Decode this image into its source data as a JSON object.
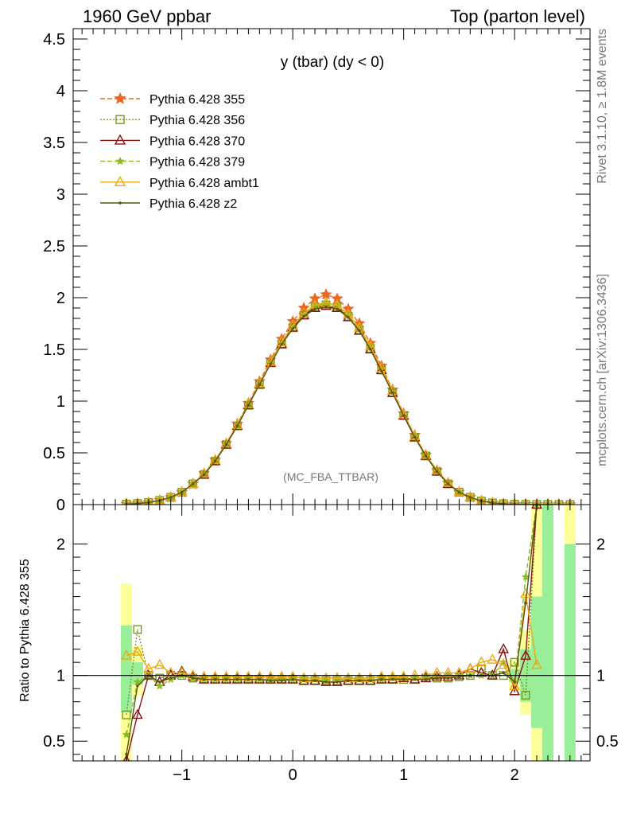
{
  "header": {
    "left": "1960 GeV ppbar",
    "right": "Top (parton level)"
  },
  "side_labels": {
    "rivet": "Rivet 3.1.10, ≥ 1.8M events",
    "mcplots": "mcplots.cern.ch [arXiv:1306.3436]"
  },
  "colors": {
    "p355": "#ee6622",
    "p356": "#779922",
    "p370": "#881111",
    "p379": "#88bb22",
    "ambt1": "#eeaa11",
    "z2": "#555511",
    "band_inner": "#99ee99",
    "band_outer": "#ffff99"
  },
  "chart_data": [
    {
      "type": "line",
      "title": "y (tbar) (dy < 0)",
      "watermark": "(MC_FBA_TTBAR)",
      "xlim": [
        -1.98,
        2.68
      ],
      "ylim": [
        0,
        4.6
      ],
      "yticks": [
        "0",
        "0.5",
        "1",
        "1.5",
        "2",
        "2.5",
        "3",
        "3.5",
        "4",
        "4.5"
      ],
      "x": [
        -1.5,
        -1.4,
        -1.3,
        -1.2,
        -1.1,
        -1.0,
        -0.9,
        -0.8,
        -0.7,
        -0.6,
        -0.5,
        -0.4,
        -0.3,
        -0.2,
        -0.1,
        0.0,
        0.1,
        0.2,
        0.3,
        0.4,
        0.5,
        0.6,
        0.7,
        0.8,
        0.9,
        1.0,
        1.1,
        1.2,
        1.3,
        1.4,
        1.5,
        1.6,
        1.7,
        1.8,
        1.9,
        2.0,
        2.1,
        2.2,
        2.3,
        2.4,
        2.5
      ],
      "series": [
        {
          "name": "Pythia 6.428 355",
          "key": "p355",
          "marker": "star",
          "dash": "dashed",
          "values": [
            0.005,
            0.01,
            0.02,
            0.04,
            0.07,
            0.12,
            0.2,
            0.3,
            0.43,
            0.59,
            0.78,
            0.98,
            1.19,
            1.4,
            1.6,
            1.77,
            1.9,
            1.99,
            2.03,
            1.99,
            1.89,
            1.75,
            1.56,
            1.34,
            1.11,
            0.88,
            0.67,
            0.48,
            0.33,
            0.21,
            0.12,
            0.07,
            0.035,
            0.017,
            0.008,
            0.004,
            0.002,
            0.001,
            0.0005,
            0.0003,
            0.0002
          ]
        },
        {
          "name": "Pythia 6.428 356",
          "key": "p356",
          "marker": "square",
          "dash": "dotted",
          "values": [
            0.005,
            0.01,
            0.02,
            0.04,
            0.07,
            0.12,
            0.2,
            0.29,
            0.42,
            0.58,
            0.76,
            0.96,
            1.16,
            1.37,
            1.55,
            1.71,
            1.83,
            1.91,
            1.93,
            1.91,
            1.82,
            1.69,
            1.51,
            1.3,
            1.08,
            0.86,
            0.65,
            0.47,
            0.32,
            0.2,
            0.12,
            0.07,
            0.035,
            0.017,
            0.008,
            0.004,
            0.002,
            0.001,
            0.0005,
            0.0003,
            0.0002
          ]
        },
        {
          "name": "Pythia 6.428 370",
          "key": "p370",
          "marker": "triangle",
          "dash": "solid",
          "values": [
            0.005,
            0.01,
            0.02,
            0.04,
            0.07,
            0.12,
            0.2,
            0.29,
            0.42,
            0.58,
            0.76,
            0.96,
            1.16,
            1.37,
            1.55,
            1.71,
            1.83,
            1.9,
            1.92,
            1.9,
            1.81,
            1.68,
            1.5,
            1.3,
            1.08,
            0.86,
            0.65,
            0.47,
            0.32,
            0.2,
            0.12,
            0.07,
            0.035,
            0.017,
            0.008,
            0.004,
            0.002,
            0.001,
            0.0005,
            0.0003,
            0.0002
          ]
        },
        {
          "name": "Pythia 6.428 379",
          "key": "p379",
          "marker": "smallstar",
          "dash": "dashed",
          "values": [
            0.005,
            0.01,
            0.02,
            0.04,
            0.07,
            0.12,
            0.2,
            0.29,
            0.42,
            0.58,
            0.76,
            0.96,
            1.16,
            1.37,
            1.56,
            1.72,
            1.84,
            1.92,
            1.94,
            1.92,
            1.83,
            1.7,
            1.52,
            1.31,
            1.09,
            0.87,
            0.66,
            0.47,
            0.32,
            0.2,
            0.12,
            0.07,
            0.035,
            0.017,
            0.008,
            0.004,
            0.002,
            0.001,
            0.0005,
            0.0003,
            0.0002
          ]
        },
        {
          "name": "Pythia 6.428 ambt1",
          "key": "ambt1",
          "marker": "triangle",
          "dash": "solid",
          "values": [
            0.005,
            0.01,
            0.02,
            0.04,
            0.07,
            0.12,
            0.2,
            0.3,
            0.43,
            0.59,
            0.77,
            0.97,
            1.17,
            1.38,
            1.57,
            1.73,
            1.85,
            1.93,
            1.95,
            1.93,
            1.84,
            1.71,
            1.53,
            1.32,
            1.1,
            0.87,
            0.66,
            0.48,
            0.33,
            0.21,
            0.12,
            0.07,
            0.036,
            0.018,
            0.009,
            0.004,
            0.002,
            0.001,
            0.0005,
            0.0003,
            0.0002
          ]
        },
        {
          "name": "Pythia 6.428 z2",
          "key": "z2",
          "marker": "dot",
          "dash": "solid",
          "values": [
            0.005,
            0.01,
            0.02,
            0.04,
            0.07,
            0.12,
            0.2,
            0.29,
            0.42,
            0.58,
            0.76,
            0.96,
            1.16,
            1.36,
            1.55,
            1.7,
            1.82,
            1.89,
            1.91,
            1.89,
            1.81,
            1.68,
            1.5,
            1.29,
            1.08,
            0.86,
            0.65,
            0.47,
            0.32,
            0.2,
            0.12,
            0.07,
            0.035,
            0.017,
            0.008,
            0.004,
            0.002,
            0.001,
            0.0005,
            0.0003,
            0.0002
          ]
        }
      ]
    },
    {
      "type": "line",
      "ylabel": "Ratio to Pythia 6.428 355",
      "xlim": [
        -1.98,
        2.68
      ],
      "ylim": [
        0.35,
        2.3
      ],
      "xticks": [
        "−1",
        "0",
        "1",
        "2"
      ],
      "yticks": [
        "0.5",
        "1",
        "2"
      ],
      "reference": 1,
      "bands": [
        {
          "x0": -1.55,
          "x1": -1.45,
          "outer": [
            0.35,
            1.7
          ],
          "inner": [
            0.72,
            1.38
          ]
        },
        {
          "x0": -1.45,
          "x1": -1.35,
          "outer": [
            0.85,
            1.22
          ],
          "inner": [
            0.93,
            1.1
          ]
        },
        {
          "x0": 1.95,
          "x1": 2.05,
          "outer": [
            0.9,
            1.12
          ],
          "inner": [
            0.95,
            1.05
          ]
        },
        {
          "x0": 2.05,
          "x1": 2.15,
          "outer": [
            0.7,
            1.35
          ],
          "inner": [
            0.8,
            1.2
          ]
        },
        {
          "x0": 2.15,
          "x1": 2.25,
          "outer": [
            0.35,
            2.3
          ],
          "inner": [
            0.6,
            1.6
          ]
        },
        {
          "x0": 2.25,
          "x1": 2.35,
          "outer": [
            0.35,
            2.3
          ],
          "inner": [
            0.35,
            2.3
          ]
        },
        {
          "x0": 2.45,
          "x1": 2.55,
          "outer": [
            0.35,
            2.3
          ],
          "inner": [
            0.35,
            2.0
          ]
        }
      ],
      "x": [
        -1.5,
        -1.4,
        -1.3,
        -1.2,
        -1.1,
        -1.0,
        -0.9,
        -0.8,
        -0.7,
        -0.6,
        -0.5,
        -0.4,
        -0.3,
        -0.2,
        -0.1,
        0.0,
        0.1,
        0.2,
        0.3,
        0.4,
        0.5,
        0.6,
        0.7,
        0.8,
        0.9,
        1.0,
        1.1,
        1.2,
        1.3,
        1.4,
        1.5,
        1.6,
        1.7,
        1.8,
        1.9,
        2.0,
        2.1,
        2.2
      ],
      "series": [
        {
          "name": "Pythia 6.428 356",
          "key": "p356",
          "marker": "square",
          "dash": "dotted",
          "values": [
            0.7,
            1.35,
            1.0,
            0.98,
            1.0,
            1.0,
            0.98,
            0.97,
            0.97,
            0.97,
            0.97,
            0.97,
            0.97,
            0.97,
            0.97,
            0.97,
            0.96,
            0.96,
            0.96,
            0.96,
            0.96,
            0.96,
            0.96,
            0.97,
            0.97,
            0.97,
            0.97,
            0.98,
            0.98,
            0.98,
            0.99,
            1.0,
            1.05,
            1.0,
            1.0,
            1.1,
            0.85,
            2.3
          ]
        },
        {
          "name": "Pythia 6.428 370",
          "key": "p370",
          "marker": "triangle",
          "dash": "solid",
          "values": [
            0.35,
            0.7,
            1.0,
            0.95,
            1.0,
            1.03,
            0.99,
            0.97,
            0.97,
            0.97,
            0.97,
            0.97,
            0.97,
            0.97,
            0.97,
            0.97,
            0.96,
            0.96,
            0.95,
            0.95,
            0.96,
            0.96,
            0.96,
            0.97,
            0.97,
            0.98,
            0.97,
            0.98,
            0.99,
            0.99,
            1.0,
            1.05,
            1.02,
            1.0,
            1.2,
            0.88,
            1.15,
            2.3
          ]
        },
        {
          "name": "Pythia 6.428 379",
          "key": "p379",
          "marker": "smallstar",
          "dash": "dashed",
          "values": [
            0.55,
            0.95,
            1.0,
            0.92,
            0.97,
            1.0,
            0.98,
            0.97,
            0.97,
            0.97,
            0.97,
            0.97,
            0.97,
            0.97,
            0.98,
            0.97,
            0.97,
            0.97,
            0.96,
            0.97,
            0.97,
            0.97,
            0.97,
            0.97,
            0.98,
            0.98,
            0.98,
            0.98,
            0.99,
            1.0,
            1.0,
            1.0,
            1.0,
            1.0,
            1.1,
            0.95,
            1.75,
            2.3
          ]
        },
        {
          "name": "Pythia 6.428 ambt1",
          "key": "ambt1",
          "marker": "triangle",
          "dash": "solid",
          "values": [
            1.15,
            1.18,
            1.05,
            1.08,
            1.02,
            1.02,
            1.0,
            0.99,
            0.99,
            0.99,
            0.99,
            0.99,
            0.99,
            0.99,
            0.99,
            0.99,
            0.98,
            0.98,
            0.98,
            0.98,
            0.98,
            0.98,
            0.98,
            0.99,
            0.99,
            0.99,
            1.0,
            1.0,
            1.02,
            1.02,
            1.02,
            1.05,
            1.1,
            1.12,
            1.08,
            0.92,
            1.62,
            1.08
          ]
        },
        {
          "name": "Pythia 6.428 z2",
          "key": "z2",
          "marker": "dot",
          "dash": "solid",
          "values": [
            0.4,
            0.92,
            1.0,
            0.95,
            0.98,
            1.0,
            0.98,
            0.97,
            0.97,
            0.97,
            0.97,
            0.97,
            0.97,
            0.96,
            0.96,
            0.97,
            0.96,
            0.96,
            0.95,
            0.95,
            0.96,
            0.96,
            0.96,
            0.97,
            0.97,
            0.97,
            0.97,
            0.97,
            0.98,
            0.98,
            0.99,
            1.0,
            1.0,
            1.0,
            1.02,
            0.95,
            1.55,
            2.3
          ]
        }
      ]
    }
  ]
}
